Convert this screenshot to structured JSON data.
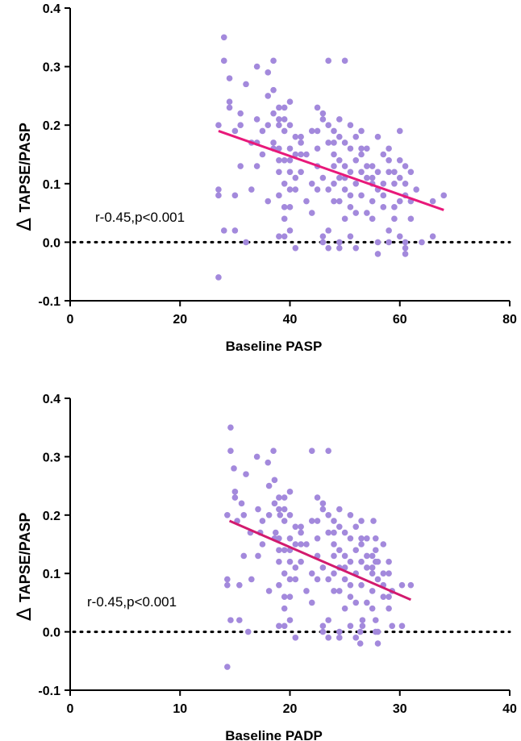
{
  "chart_data": [
    {
      "type": "scatter",
      "xlabel": "Baseline PASP",
      "ylabel": "TAPSE/PASP",
      "ylabel_prefix": "Δ",
      "annotation": "r-0.45,p<0.001",
      "xlim": [
        0,
        80
      ],
      "ylim": [
        -0.1,
        0.4
      ],
      "xticks": [
        "0",
        "20",
        "40",
        "60",
        "80"
      ],
      "yticks": [
        "-0.1",
        "0.0",
        "0.1",
        "0.2",
        "0.3",
        "0.4"
      ],
      "reference_line_y": 0.0,
      "point_color": "#a389dc",
      "trend_color": "#e8197a",
      "trend": {
        "x": [
          27,
          68
        ],
        "y": [
          0.19,
          0.055
        ]
      },
      "points": [
        [
          27,
          0.2
        ],
        [
          27,
          0.09
        ],
        [
          27,
          0.08
        ],
        [
          27,
          -0.06
        ],
        [
          28,
          0.35
        ],
        [
          28,
          0.31
        ],
        [
          28,
          0.02
        ],
        [
          29,
          0.28
        ],
        [
          29,
          0.24
        ],
        [
          29,
          0.23
        ],
        [
          30,
          0.19
        ],
        [
          30,
          0.08
        ],
        [
          30,
          0.02
        ],
        [
          31,
          0.22
        ],
        [
          31,
          0.13
        ],
        [
          31,
          0.2
        ],
        [
          32,
          0.27
        ],
        [
          32,
          0.0
        ],
        [
          33,
          0.17
        ],
        [
          33,
          0.09
        ],
        [
          34,
          0.3
        ],
        [
          34,
          0.21
        ],
        [
          34,
          0.13
        ],
        [
          34,
          0.17
        ],
        [
          35,
          0.19
        ],
        [
          35,
          0.15
        ],
        [
          36,
          0.29
        ],
        [
          36,
          0.25
        ],
        [
          36,
          0.2
        ],
        [
          36,
          0.07
        ],
        [
          37,
          0.31
        ],
        [
          37,
          0.26
        ],
        [
          37,
          0.22
        ],
        [
          37,
          0.16
        ],
        [
          37,
          0.17
        ],
        [
          38,
          0.23
        ],
        [
          38,
          0.21
        ],
        [
          38,
          0.14
        ],
        [
          38,
          0.12
        ],
        [
          38,
          0.08
        ],
        [
          38,
          0.01
        ],
        [
          38,
          0.16
        ],
        [
          38,
          0.2
        ],
        [
          39,
          0.23
        ],
        [
          39,
          0.21
        ],
        [
          39,
          0.19
        ],
        [
          39,
          0.14
        ],
        [
          39,
          0.1
        ],
        [
          39,
          0.06
        ],
        [
          39,
          0.04
        ],
        [
          39,
          0.01
        ],
        [
          40,
          0.24
        ],
        [
          40,
          0.2
        ],
        [
          40,
          0.16
        ],
        [
          40,
          0.12
        ],
        [
          40,
          0.09
        ],
        [
          40,
          0.06
        ],
        [
          40,
          0.02
        ],
        [
          40,
          0.14
        ],
        [
          41,
          0.18
        ],
        [
          41,
          0.15
        ],
        [
          41,
          0.11
        ],
        [
          41,
          0.09
        ],
        [
          41,
          -0.01
        ],
        [
          42,
          0.15
        ],
        [
          42,
          0.12
        ],
        [
          42,
          0.17
        ],
        [
          43,
          0.15
        ],
        [
          43,
          0.07
        ],
        [
          44,
          0.1
        ],
        [
          44,
          0.05
        ],
        [
          45,
          0.23
        ],
        [
          45,
          0.19
        ],
        [
          45,
          0.16
        ],
        [
          45,
          0.13
        ],
        [
          46,
          0.21
        ],
        [
          46,
          0.22
        ],
        [
          46,
          0.11
        ],
        [
          46,
          0.01
        ],
        [
          46,
          0.0
        ],
        [
          47,
          0.31
        ],
        [
          47,
          0.2
        ],
        [
          47,
          0.17
        ],
        [
          47,
          0.09
        ],
        [
          47,
          0.02
        ],
        [
          47,
          -0.01
        ],
        [
          48,
          0.19
        ],
        [
          48,
          0.15
        ],
        [
          48,
          0.1
        ],
        [
          48,
          0.07
        ],
        [
          48,
          0.13
        ],
        [
          49,
          0.18
        ],
        [
          49,
          0.21
        ],
        [
          49,
          0.14
        ],
        [
          49,
          0.11
        ],
        [
          49,
          0.07
        ],
        [
          49,
          0.0
        ],
        [
          49,
          -0.01
        ],
        [
          50,
          0.31
        ],
        [
          50,
          0.17
        ],
        [
          50,
          0.13
        ],
        [
          50,
          0.09
        ],
        [
          50,
          0.04
        ],
        [
          51,
          0.2
        ],
        [
          51,
          0.16
        ],
        [
          51,
          0.12
        ],
        [
          51,
          0.08
        ],
        [
          51,
          0.01
        ],
        [
          51,
          0.06
        ],
        [
          52,
          0.18
        ],
        [
          52,
          0.14
        ],
        [
          52,
          0.1
        ],
        [
          52,
          0.05
        ],
        [
          52,
          -0.01
        ],
        [
          53,
          0.15
        ],
        [
          53,
          0.19
        ],
        [
          53,
          0.12
        ],
        [
          53,
          0.08
        ],
        [
          54,
          0.16
        ],
        [
          54,
          0.13
        ],
        [
          54,
          0.11
        ],
        [
          54,
          0.05
        ],
        [
          55,
          0.13
        ],
        [
          55,
          0.1
        ],
        [
          55,
          0.07
        ],
        [
          55,
          0.04
        ],
        [
          56,
          0.12
        ],
        [
          56,
          0.09
        ],
        [
          56,
          0.0
        ],
        [
          56,
          -0.02
        ],
        [
          56,
          0.18
        ],
        [
          57,
          0.15
        ],
        [
          57,
          0.1
        ],
        [
          57,
          0.08
        ],
        [
          57,
          0.06
        ],
        [
          58,
          0.16
        ],
        [
          58,
          0.12
        ],
        [
          58,
          0.02
        ],
        [
          58,
          0.0
        ],
        [
          58,
          0.14
        ],
        [
          59,
          0.1
        ],
        [
          59,
          0.06
        ],
        [
          59,
          0.04
        ],
        [
          59,
          0.12
        ],
        [
          60,
          0.19
        ],
        [
          60,
          0.14
        ],
        [
          60,
          0.11
        ],
        [
          60,
          0.07
        ],
        [
          60,
          0.01
        ],
        [
          61,
          0.13
        ],
        [
          61,
          0.1
        ],
        [
          61,
          0.08
        ],
        [
          61,
          -0.01
        ],
        [
          61,
          -0.02
        ],
        [
          61,
          0.0
        ],
        [
          62,
          0.12
        ],
        [
          62,
          0.07
        ],
        [
          62,
          0.04
        ],
        [
          63,
          0.09
        ],
        [
          64,
          0.0
        ],
        [
          66,
          0.07
        ],
        [
          66,
          0.01
        ],
        [
          68,
          0.08
        ],
        [
          50,
          0.11
        ],
        [
          45,
          0.09
        ],
        [
          42,
          0.18
        ],
        [
          53,
          0.16
        ],
        [
          44,
          0.19
        ],
        [
          48,
          0.17
        ],
        [
          55,
          0.11
        ]
      ]
    },
    {
      "type": "scatter",
      "xlabel": "Baseline PADP",
      "ylabel": "TAPSE/PASP",
      "ylabel_prefix": "Δ",
      "annotation": "r-0.45,p<0.001",
      "xlim": [
        0,
        40
      ],
      "ylim": [
        -0.1,
        0.4
      ],
      "xticks": [
        "0",
        "10",
        "20",
        "30",
        "40"
      ],
      "yticks": [
        "-0.1",
        "0.0",
        "0.1",
        "0.2",
        "0.3",
        "0.4"
      ],
      "reference_line_y": 0.0,
      "point_color": "#a389dc",
      "trend_color": "#d21a6e",
      "trend": {
        "x": [
          14.5,
          31
        ],
        "y": [
          0.19,
          0.055
        ]
      },
      "points": [
        [
          14.3,
          0.2
        ],
        [
          14.3,
          0.09
        ],
        [
          14.3,
          0.08
        ],
        [
          14.3,
          -0.06
        ],
        [
          14.6,
          0.35
        ],
        [
          14.6,
          0.31
        ],
        [
          14.6,
          0.02
        ],
        [
          14.9,
          0.28
        ],
        [
          15.0,
          0.24
        ],
        [
          15.0,
          0.23
        ],
        [
          15.2,
          0.19
        ],
        [
          15.4,
          0.08
        ],
        [
          15.4,
          0.02
        ],
        [
          15.6,
          0.22
        ],
        [
          15.8,
          0.13
        ],
        [
          15.8,
          0.2
        ],
        [
          16.0,
          0.27
        ],
        [
          16.2,
          0.0
        ],
        [
          16.4,
          0.17
        ],
        [
          16.5,
          0.09
        ],
        [
          17.0,
          0.3
        ],
        [
          17.1,
          0.21
        ],
        [
          17.1,
          0.13
        ],
        [
          17.3,
          0.17
        ],
        [
          17.5,
          0.19
        ],
        [
          17.5,
          0.15
        ],
        [
          18.0,
          0.29
        ],
        [
          18.1,
          0.25
        ],
        [
          18.1,
          0.2
        ],
        [
          18.1,
          0.07
        ],
        [
          18.5,
          0.31
        ],
        [
          18.6,
          0.26
        ],
        [
          18.6,
          0.22
        ],
        [
          18.6,
          0.16
        ],
        [
          18.7,
          0.17
        ],
        [
          19.0,
          0.23
        ],
        [
          19.0,
          0.21
        ],
        [
          19.0,
          0.14
        ],
        [
          19.0,
          0.12
        ],
        [
          19.0,
          0.08
        ],
        [
          19.0,
          0.01
        ],
        [
          19.0,
          0.16
        ],
        [
          19.1,
          0.2
        ],
        [
          19.5,
          0.23
        ],
        [
          19.5,
          0.21
        ],
        [
          19.5,
          0.19
        ],
        [
          19.5,
          0.14
        ],
        [
          19.5,
          0.1
        ],
        [
          19.5,
          0.06
        ],
        [
          19.5,
          0.04
        ],
        [
          19.5,
          0.01
        ],
        [
          20.0,
          0.24
        ],
        [
          20.0,
          0.2
        ],
        [
          20.0,
          0.16
        ],
        [
          20.0,
          0.12
        ],
        [
          20.0,
          0.09
        ],
        [
          20.0,
          0.06
        ],
        [
          20.0,
          0.02
        ],
        [
          20.0,
          0.14
        ],
        [
          20.5,
          0.18
        ],
        [
          20.5,
          0.15
        ],
        [
          20.5,
          0.11
        ],
        [
          20.5,
          0.09
        ],
        [
          20.5,
          -0.01
        ],
        [
          21.0,
          0.15
        ],
        [
          21.0,
          0.12
        ],
        [
          21.0,
          0.17
        ],
        [
          21.5,
          0.15
        ],
        [
          21.5,
          0.07
        ],
        [
          22.0,
          0.1
        ],
        [
          22.0,
          0.05
        ],
        [
          22.5,
          0.23
        ],
        [
          22.5,
          0.19
        ],
        [
          22.5,
          0.16
        ],
        [
          22.5,
          0.13
        ],
        [
          23.0,
          0.21
        ],
        [
          23.0,
          0.22
        ],
        [
          23.0,
          0.11
        ],
        [
          23.0,
          0.01
        ],
        [
          23.0,
          0.0
        ],
        [
          23.5,
          0.31
        ],
        [
          23.5,
          0.2
        ],
        [
          23.5,
          0.17
        ],
        [
          23.5,
          0.09
        ],
        [
          23.5,
          0.02
        ],
        [
          23.5,
          -0.01
        ],
        [
          24.0,
          0.19
        ],
        [
          24.0,
          0.15
        ],
        [
          24.0,
          0.1
        ],
        [
          24.0,
          0.07
        ],
        [
          24.0,
          0.13
        ],
        [
          24.5,
          0.18
        ],
        [
          24.5,
          0.21
        ],
        [
          24.5,
          0.14
        ],
        [
          24.5,
          0.11
        ],
        [
          24.5,
          0.07
        ],
        [
          24.5,
          0.0
        ],
        [
          24.5,
          -0.01
        ],
        [
          22.0,
          0.31
        ],
        [
          25.0,
          0.17
        ],
        [
          25.0,
          0.13
        ],
        [
          25.0,
          0.09
        ],
        [
          25.0,
          0.04
        ],
        [
          25.5,
          0.2
        ],
        [
          25.5,
          0.16
        ],
        [
          25.5,
          0.12
        ],
        [
          25.5,
          0.08
        ],
        [
          25.5,
          0.01
        ],
        [
          25.5,
          0.06
        ],
        [
          26.0,
          0.18
        ],
        [
          26.0,
          0.14
        ],
        [
          26.0,
          0.1
        ],
        [
          26.0,
          0.05
        ],
        [
          26.0,
          -0.01
        ],
        [
          26.5,
          0.15
        ],
        [
          26.5,
          0.19
        ],
        [
          26.5,
          0.12
        ],
        [
          26.5,
          0.08
        ],
        [
          27.0,
          0.16
        ],
        [
          27.0,
          0.13
        ],
        [
          27.0,
          0.11
        ],
        [
          27.0,
          0.05
        ],
        [
          27.5,
          0.13
        ],
        [
          27.5,
          0.1
        ],
        [
          27.5,
          0.07
        ],
        [
          27.5,
          0.04
        ],
        [
          28.0,
          0.12
        ],
        [
          28.0,
          0.09
        ],
        [
          28.0,
          0.0
        ],
        [
          28.0,
          -0.02
        ],
        [
          27.6,
          0.19
        ],
        [
          28.5,
          0.15
        ],
        [
          28.5,
          0.1
        ],
        [
          28.5,
          0.08
        ],
        [
          28.5,
          0.06
        ],
        [
          27.8,
          0.16
        ],
        [
          27.8,
          0.12
        ],
        [
          27.8,
          0.02
        ],
        [
          27.8,
          0.0
        ],
        [
          27.8,
          0.14
        ],
        [
          29.0,
          0.1
        ],
        [
          29.0,
          0.06
        ],
        [
          29.0,
          0.04
        ],
        [
          29.0,
          0.12
        ],
        [
          26.6,
          0.02
        ],
        [
          26.6,
          0.01
        ],
        [
          26.4,
          -0.02
        ],
        [
          26.4,
          0.0
        ],
        [
          29.3,
          0.07
        ],
        [
          29.3,
          0.01
        ],
        [
          30.2,
          0.08
        ],
        [
          30.2,
          0.01
        ],
        [
          31.0,
          0.08
        ],
        [
          25.0,
          0.11
        ],
        [
          22.5,
          0.09
        ],
        [
          21.0,
          0.18
        ],
        [
          26.5,
          0.16
        ],
        [
          22.0,
          0.19
        ],
        [
          24.0,
          0.17
        ],
        [
          27.5,
          0.11
        ]
      ]
    }
  ]
}
